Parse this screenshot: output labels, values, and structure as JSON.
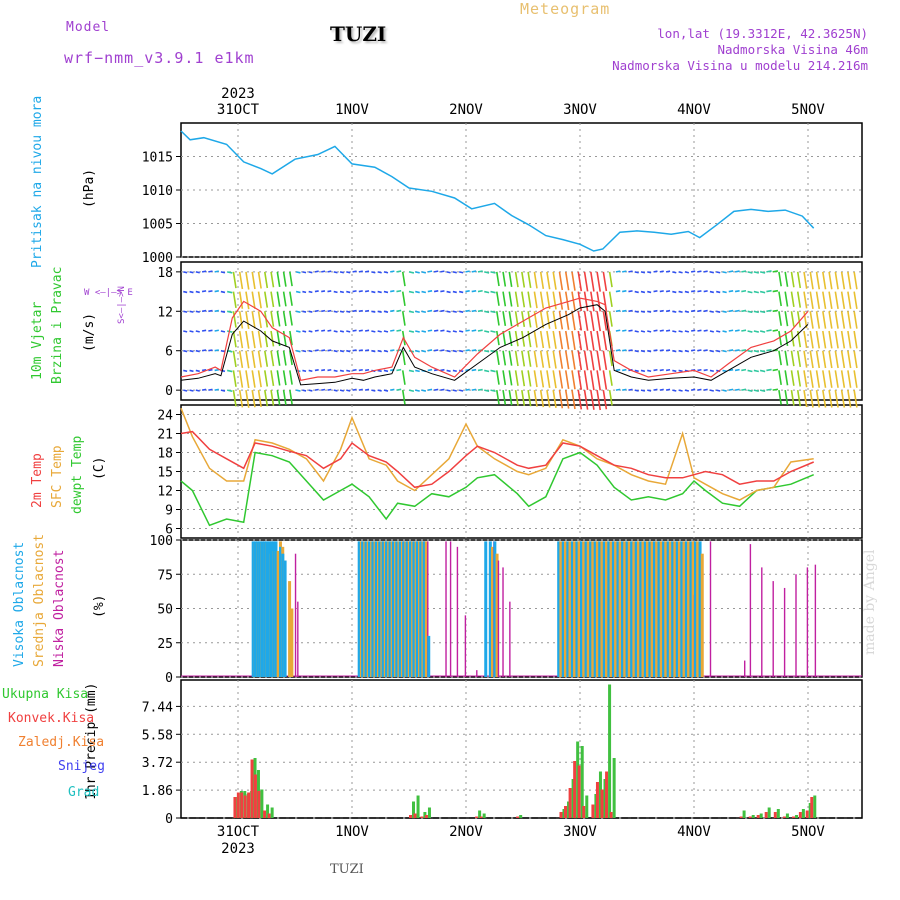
{
  "header": {
    "model_label": "Model",
    "model_name": "wrf−nmm_v3.9.1  e1km",
    "title": "TUZI",
    "subtitle": "Meteogram",
    "lonlat": "lon,lat (19.3312E, 42.3625N)",
    "elevation": "Nadmorska Visina 46m",
    "model_elevation": "Nadmorska Visina u modelu 214.216m",
    "footer_title": "TUZI",
    "credit": "made by Angel"
  },
  "axis_dates": {
    "year": "2023",
    "labels": [
      "31OCT",
      "1NOV",
      "2NOV",
      "3NOV",
      "4NOV",
      "5NOV"
    ],
    "year_positions": [
      0
    ]
  },
  "colors": {
    "pressure": "#1ea8e8",
    "temp2m": "#f04040",
    "sfc": "#e8a838",
    "dewpt": "#30c830",
    "high_cloud": "#1ea8e8",
    "mid_cloud": "#e8a838",
    "low_cloud": "#c020a0",
    "total_precip": "#40c040",
    "conv_precip": "#f04040",
    "frozen": "#f08030",
    "snow": "#4040f0",
    "grad": "#20c0c0",
    "wind_speed": "#000000",
    "wind_gust": "#f04040"
  },
  "panels": {
    "pressure": {
      "ylabel1": "Pritisak na nivou mora",
      "ylabel2": "(hPa)"
    },
    "wind": {
      "ylabel1": "10m Vjetar",
      "ylabel2": "Brzina i Pravac",
      "ylabel3": "(m/s)",
      "compass": "W  <—|—>  E",
      "compass_v": "S<—|—>N"
    },
    "temp": {
      "ylabel1": "2m Temp",
      "ylabel2": "SFC Temp",
      "ylabel3": "dewpt Temp",
      "ylabel4": "(C)"
    },
    "cloud": {
      "ylabel1": "Visoka Oblacnost",
      "ylabel2": "Srednja Oblacnost",
      "ylabel3": "Niska Oblacnost",
      "ylabel4": "(%)"
    },
    "precip": {
      "ylabel": "1hr Precip (mm)",
      "legend": [
        "Ukupna Kisa",
        "Konvek.Kisa",
        "Zaledj.Kisa",
        "Snijeg",
        "Grad"
      ]
    }
  },
  "chart_data": [
    {
      "type": "line",
      "name_ref": "pressure",
      "ylabel": "(hPa)",
      "ylim": [
        1000,
        1020
      ],
      "yticks": [
        "1000",
        "1005",
        "1010",
        "1015"
      ],
      "x_days": [
        0,
        0.08,
        0.2,
        0.4,
        0.55,
        0.7,
        0.8,
        1.0,
        1.2,
        1.35,
        1.5,
        1.7,
        1.85,
        2.0,
        2.2,
        2.4,
        2.55,
        2.75,
        2.9,
        3.05,
        3.2,
        3.35,
        3.5,
        3.62,
        3.7,
        3.85,
        4.0,
        4.15,
        4.3,
        4.45,
        4.55,
        4.7,
        4.85,
        5.0,
        5.15,
        5.3,
        5.45,
        5.55
      ],
      "values": [
        1018.8,
        1017.5,
        1017.8,
        1016.8,
        1014.2,
        1013.2,
        1012.4,
        1014.6,
        1015.3,
        1016.5,
        1013.9,
        1013.4,
        1012.0,
        1010.3,
        1009.8,
        1008.8,
        1007.2,
        1008.0,
        1006.2,
        1004.8,
        1003.2,
        1002.6,
        1001.9,
        1000.9,
        1001.2,
        1003.7,
        1003.9,
        1003.7,
        1003.4,
        1003.8,
        1002.9,
        1004.8,
        1006.8,
        1007.1,
        1006.8,
        1007.0,
        1006.1,
        1004.3
      ]
    },
    {
      "type": "line",
      "name_ref": "wind",
      "ylabel": "(m/s)",
      "ylim": [
        -1.5,
        19.5
      ],
      "yticks": [
        "0",
        "6",
        "12",
        "18"
      ],
      "x_days": [
        0,
        0.15,
        0.3,
        0.35,
        0.45,
        0.55,
        0.7,
        0.8,
        0.95,
        1.05,
        1.2,
        1.35,
        1.5,
        1.6,
        1.7,
        1.85,
        1.95,
        2.05,
        2.2,
        2.4,
        2.6,
        2.8,
        3.0,
        3.2,
        3.4,
        3.5,
        3.65,
        3.72,
        3.8,
        3.95,
        4.1,
        4.3,
        4.5,
        4.65,
        4.8,
        5.0,
        5.2,
        5.35,
        5.5
      ],
      "series": [
        {
          "name": "speed",
          "values": [
            1.5,
            1.8,
            2.5,
            2.2,
            8.5,
            10.5,
            9.0,
            7.5,
            6.5,
            0.8,
            1.0,
            1.2,
            1.8,
            1.5,
            2.0,
            2.5,
            6.5,
            3.5,
            2.5,
            1.5,
            4.0,
            6.5,
            8.0,
            10.0,
            11.5,
            12.5,
            13.0,
            12.0,
            3.0,
            2.0,
            1.5,
            1.8,
            2.0,
            1.5,
            3.0,
            5.0,
            6.0,
            7.5,
            10.0
          ]
        },
        {
          "name": "gust",
          "values": [
            2.0,
            2.5,
            3.5,
            3.0,
            11.0,
            13.5,
            12.0,
            9.5,
            8.0,
            1.5,
            2.0,
            2.0,
            2.5,
            2.5,
            3.0,
            3.5,
            8.0,
            5.0,
            3.5,
            2.0,
            5.5,
            8.5,
            10.5,
            12.5,
            13.5,
            14.0,
            13.5,
            13.0,
            4.5,
            3.0,
            2.0,
            2.5,
            3.0,
            2.0,
            4.0,
            6.5,
            7.5,
            9.0,
            12.0
          ]
        }
      ]
    },
    {
      "type": "line",
      "name_ref": "temperature",
      "ylabel": "(C)",
      "ylim": [
        4.5,
        25.5
      ],
      "yticks": [
        "6",
        "9",
        "12",
        "15",
        "18",
        "21",
        "24"
      ],
      "x_days": [
        0,
        0.1,
        0.25,
        0.4,
        0.55,
        0.65,
        0.8,
        0.95,
        1.1,
        1.25,
        1.4,
        1.5,
        1.65,
        1.8,
        1.9,
        2.05,
        2.2,
        2.35,
        2.5,
        2.6,
        2.75,
        2.95,
        3.05,
        3.2,
        3.35,
        3.5,
        3.65,
        3.8,
        3.95,
        4.1,
        4.25,
        4.4,
        4.5,
        4.6,
        4.75,
        4.9,
        5.05,
        5.2,
        5.35,
        5.55
      ],
      "series": [
        {
          "name": "2m",
          "values": [
            21.0,
            21.3,
            18.5,
            17.0,
            15.5,
            19.5,
            19.0,
            18.2,
            17.5,
            15.5,
            17.0,
            19.5,
            17.5,
            16.5,
            15.0,
            12.5,
            13.0,
            15.0,
            17.5,
            19.0,
            18.0,
            16.0,
            15.5,
            16.0,
            19.5,
            19.0,
            17.5,
            16.0,
            15.5,
            14.5,
            14.0,
            14.0,
            14.5,
            15.0,
            14.5,
            13.0,
            13.5,
            13.5,
            15.0,
            16.5
          ]
        },
        {
          "name": "sfc",
          "values": [
            25.0,
            20.5,
            15.5,
            13.5,
            13.5,
            20.0,
            19.5,
            18.5,
            17.0,
            13.5,
            18.5,
            23.5,
            17.0,
            16.0,
            13.5,
            12.0,
            14.5,
            17.0,
            22.5,
            19.0,
            17.0,
            15.0,
            14.5,
            15.5,
            20.0,
            19.0,
            17.0,
            16.0,
            14.5,
            13.5,
            13.0,
            21.0,
            14.0,
            13.0,
            11.5,
            10.5,
            12.0,
            12.5,
            16.5,
            17.0
          ]
        },
        {
          "name": "dewpt",
          "values": [
            13.5,
            12.0,
            6.5,
            7.5,
            7.0,
            18.0,
            17.5,
            16.5,
            13.5,
            10.5,
            12.0,
            13.0,
            11.0,
            7.5,
            10.0,
            9.5,
            11.5,
            11.0,
            12.5,
            14.0,
            14.5,
            11.5,
            9.5,
            11.0,
            17.0,
            18.0,
            16.0,
            12.5,
            10.5,
            11.0,
            10.5,
            11.5,
            13.5,
            12.0,
            10.0,
            9.5,
            12.0,
            12.5,
            13.0,
            14.5
          ]
        }
      ]
    },
    {
      "type": "bar",
      "name_ref": "cloud",
      "ylabel": "(%)",
      "ylim": [
        0,
        100
      ],
      "yticks": [
        "0",
        "25",
        "50",
        "75",
        "100"
      ],
      "x_days": [
        0.62,
        0.64,
        0.66,
        0.68,
        0.7,
        0.72,
        0.74,
        0.76,
        0.78,
        0.8,
        0.82,
        0.84,
        0.86,
        0.88,
        0.9,
        0.92,
        0.94,
        0.96,
        0.98,
        1.0,
        1.02,
        1.06,
        1.1,
        1.55,
        1.58,
        1.61,
        1.64,
        1.67,
        1.7,
        1.73,
        1.76,
        1.79,
        1.82,
        1.85,
        1.88,
        1.91,
        1.94,
        1.97,
        2.0,
        2.03,
        2.06,
        2.09,
        2.12,
        2.16,
        2.2,
        2.28,
        2.32,
        2.38,
        2.45,
        2.55,
        2.66,
        2.7,
        2.74,
        2.78,
        2.84,
        2.9,
        3.3,
        3.34,
        3.38,
        3.42,
        3.46,
        3.5,
        3.54,
        3.58,
        3.62,
        3.66,
        3.7,
        3.74,
        3.78,
        3.82,
        3.86,
        3.9,
        3.94,
        3.98,
        4.02,
        4.06,
        4.1,
        4.14,
        4.18,
        4.22,
        4.26,
        4.3,
        4.34,
        4.38,
        4.42,
        4.46,
        4.5,
        4.54,
        4.6,
        4.9,
        4.95,
        5.05,
        5.15,
        5.25,
        5.35,
        5.45,
        5.52
      ],
      "series": [
        {
          "name": "Visoka Oblacnost",
          "values": [
            99,
            99,
            99,
            99,
            99,
            99,
            99,
            99,
            99,
            99,
            99,
            0,
            95,
            90,
            85,
            0,
            0,
            0,
            0,
            0,
            0,
            0,
            0,
            99,
            99,
            99,
            99,
            99,
            99,
            99,
            99,
            99,
            99,
            99,
            99,
            99,
            99,
            99,
            99,
            99,
            99,
            99,
            99,
            30,
            0,
            0,
            0,
            0,
            0,
            0,
            99,
            99,
            99,
            0,
            0,
            0,
            99,
            99,
            99,
            99,
            99,
            99,
            99,
            99,
            99,
            99,
            99,
            99,
            99,
            99,
            99,
            99,
            99,
            99,
            99,
            99,
            99,
            99,
            99,
            99,
            99,
            99,
            99,
            99,
            99,
            99,
            99,
            99,
            0,
            0,
            0,
            0,
            0,
            0,
            0,
            0,
            0
          ]
        },
        {
          "name": "Srednja Oblacnost",
          "values": [
            98,
            98,
            98,
            98,
            98,
            98,
            0,
            90,
            92,
            92,
            92,
            99,
            95,
            85,
            0,
            70,
            50,
            0,
            0,
            0,
            0,
            0,
            0,
            99,
            99,
            99,
            99,
            99,
            99,
            99,
            99,
            99,
            99,
            99,
            99,
            99,
            99,
            99,
            99,
            99,
            99,
            99,
            99,
            0,
            0,
            0,
            0,
            0,
            0,
            0,
            0,
            95,
            90,
            0,
            0,
            0,
            99,
            99,
            99,
            99,
            99,
            99,
            99,
            99,
            99,
            99,
            99,
            99,
            99,
            99,
            99,
            99,
            99,
            99,
            99,
            99,
            99,
            99,
            99,
            99,
            99,
            99,
            99,
            99,
            99,
            99,
            99,
            90,
            0,
            0,
            0,
            0,
            0,
            0,
            0,
            0,
            0
          ]
        },
        {
          "name": "Niska Oblacnost",
          "values": [
            0,
            0,
            0,
            0,
            0,
            0,
            0,
            0,
            0,
            0,
            0,
            0,
            0,
            0,
            0,
            0,
            0,
            90,
            55,
            0,
            0,
            0,
            0,
            0,
            0,
            0,
            0,
            0,
            0,
            0,
            0,
            0,
            0,
            0,
            0,
            99,
            99,
            99,
            99,
            99,
            99,
            99,
            99,
            0,
            0,
            99,
            99,
            95,
            45,
            5,
            0,
            99,
            85,
            80,
            55,
            0,
            0,
            0,
            0,
            0,
            0,
            0,
            0,
            0,
            0,
            0,
            0,
            0,
            0,
            0,
            0,
            0,
            0,
            0,
            0,
            0,
            0,
            0,
            0,
            0,
            0,
            0,
            0,
            0,
            0,
            60,
            0,
            0,
            99,
            12,
            97,
            80,
            70,
            65,
            75,
            80,
            82
          ]
        }
      ]
    },
    {
      "type": "bar",
      "name_ref": "precip",
      "ylabel": "1hr Precip (mm)",
      "ylim": [
        0,
        9.2
      ],
      "yticks": [
        "0",
        "1.86",
        "3.72",
        "5.58",
        "7.44"
      ],
      "x_days": [
        0.46,
        0.49,
        0.52,
        0.55,
        0.58,
        0.61,
        0.64,
        0.67,
        0.72,
        0.76,
        2.0,
        2.04,
        2.1,
        2.14,
        2.58,
        2.62,
        2.94,
        3.32,
        3.36,
        3.4,
        3.44,
        3.48,
        3.52,
        3.6,
        3.64,
        3.68,
        3.72,
        3.76,
        4.9,
        4.98,
        5.05,
        5.12,
        5.2,
        5.28,
        5.36,
        5.42,
        5.48,
        5.52
      ],
      "series": [
        {
          "name": "Ukupna Kisa",
          "values": [
            1.4,
            1.8,
            1.8,
            1.6,
            1.8,
            4.0,
            3.2,
            1.9,
            0.9,
            0.7,
            1.1,
            1.5,
            0.4,
            0.7,
            0.5,
            0.3,
            0.2,
            0.6,
            1.1,
            2.6,
            5.1,
            4.8,
            1.5,
            1.6,
            3.1,
            2.6,
            8.9,
            4.0,
            0.5,
            0.2,
            0.3,
            0.7,
            0.6,
            0.3,
            0.2,
            0.6,
            1.0,
            1.5
          ]
        },
        {
          "name": "Konvek.Kisa",
          "values": [
            1.4,
            1.7,
            1.7,
            1.5,
            1.7,
            3.9,
            2.9,
            1.8,
            0.5,
            0.3,
            0.2,
            0.3,
            0.1,
            0.2,
            0.1,
            0.1,
            0.1,
            0.4,
            0.8,
            2.0,
            3.8,
            3.5,
            0.8,
            0.9,
            2.4,
            1.9,
            3.1,
            0.4,
            0.1,
            0.1,
            0.2,
            0.4,
            0.4,
            0.1,
            0.1,
            0.4,
            0.5,
            1.4
          ]
        },
        {
          "name": "Zaledj.Kisa",
          "values": [
            0,
            0,
            0,
            0,
            0,
            0,
            0,
            0,
            0,
            0,
            0,
            0,
            0,
            0,
            0,
            0,
            0,
            0,
            0,
            0,
            0,
            0,
            0,
            0,
            0,
            0,
            0,
            0,
            0,
            0,
            0,
            0,
            0,
            0,
            0,
            0,
            0,
            0
          ]
        },
        {
          "name": "Snijeg",
          "values": [
            0,
            0,
            0,
            0,
            0,
            0,
            0,
            0,
            0,
            0,
            0,
            0,
            0,
            0,
            0,
            0,
            0,
            0,
            0,
            0,
            0,
            0,
            0,
            0,
            0,
            0,
            0,
            0,
            0,
            0,
            0,
            0,
            0,
            0,
            0,
            0,
            0,
            0
          ]
        },
        {
          "name": "Grad",
          "values": [
            0,
            0,
            0,
            0,
            0,
            0,
            0,
            0,
            0,
            0,
            0,
            0,
            0,
            0,
            0,
            0,
            0,
            0,
            0,
            0,
            0,
            0,
            0,
            0,
            0,
            0,
            0,
            0,
            0,
            0,
            0,
            0,
            0,
            0,
            0,
            0,
            0,
            0
          ]
        }
      ]
    }
  ]
}
